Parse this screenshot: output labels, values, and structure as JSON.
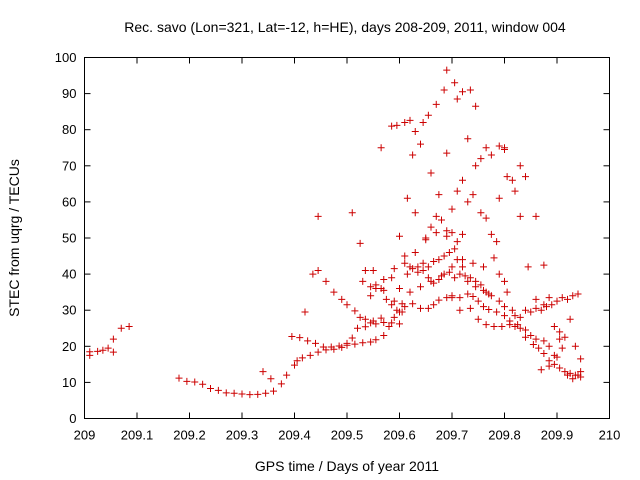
{
  "chart_data": {
    "type": "scatter",
    "title": "Rec. savo (Lon=321, Lat=-12, h=HE), days 208-209, 2011, window 004",
    "xlabel": "GPS time / Days of year 2011",
    "ylabel": "STEC from uqrg / TECUs",
    "xlim": [
      209,
      210
    ],
    "ylim": [
      0,
      100
    ],
    "xticks": [
      "209",
      "209.1",
      "209.2",
      "209.3",
      "209.4",
      "209.5",
      "209.6",
      "209.7",
      "209.8",
      "209.9",
      "210"
    ],
    "yticks": [
      "0",
      "10",
      "20",
      "30",
      "40",
      "50",
      "60",
      "70",
      "80",
      "90",
      "100"
    ],
    "grid": false,
    "marker": "+",
    "color": "#cc0000",
    "series": [
      {
        "values": [
          [
            209.01,
            18.5
          ],
          [
            209.01,
            17.5
          ],
          [
            209.025,
            18.6
          ],
          [
            209.035,
            18.9
          ],
          [
            209.045,
            19.5
          ],
          [
            209.055,
            18.4
          ],
          [
            209.055,
            22.0
          ],
          [
            209.07,
            25.0
          ],
          [
            209.085,
            25.5
          ],
          [
            209.18,
            11.2
          ],
          [
            209.195,
            10.3
          ],
          [
            209.21,
            10.1
          ],
          [
            209.225,
            9.5
          ],
          [
            209.24,
            8.3
          ],
          [
            209.255,
            7.8
          ],
          [
            209.27,
            7.1
          ],
          [
            209.285,
            7.0
          ],
          [
            209.3,
            6.8
          ],
          [
            209.315,
            6.6
          ],
          [
            209.33,
            6.7
          ],
          [
            209.345,
            7.0
          ],
          [
            209.36,
            7.6
          ],
          [
            209.375,
            9.6
          ],
          [
            209.385,
            12.0
          ],
          [
            209.34,
            13.0
          ],
          [
            209.355,
            11.0
          ],
          [
            209.4,
            14.8
          ],
          [
            209.405,
            16.0
          ],
          [
            209.415,
            16.8
          ],
          [
            209.43,
            17.5
          ],
          [
            209.445,
            18.4
          ],
          [
            209.46,
            19.0
          ],
          [
            209.475,
            19.2
          ],
          [
            209.49,
            19.7
          ],
          [
            209.5,
            20.3
          ],
          [
            209.515,
            20.6
          ],
          [
            209.53,
            21.0
          ],
          [
            209.545,
            21.2
          ],
          [
            209.555,
            21.8
          ],
          [
            209.57,
            23.0
          ],
          [
            209.58,
            25.5
          ],
          [
            209.59,
            28.0
          ],
          [
            209.6,
            29.5
          ],
          [
            209.61,
            31.0
          ],
          [
            209.625,
            31.8
          ],
          [
            209.64,
            30.5
          ],
          [
            209.655,
            30.5
          ],
          [
            209.665,
            31.5
          ],
          [
            209.675,
            32.8
          ],
          [
            209.69,
            33.5
          ],
          [
            209.7,
            34.0
          ],
          [
            209.715,
            33.5
          ],
          [
            209.73,
            34.5
          ],
          [
            209.74,
            33.8
          ],
          [
            209.75,
            32.5
          ],
          [
            209.76,
            31.0
          ],
          [
            209.77,
            30.2
          ],
          [
            209.785,
            29.5
          ],
          [
            209.8,
            28.5
          ],
          [
            209.81,
            27.0
          ],
          [
            209.825,
            26.0
          ],
          [
            209.84,
            24.5
          ],
          [
            209.85,
            23.0
          ],
          [
            209.86,
            22.0
          ],
          [
            209.875,
            21.5
          ],
          [
            209.885,
            20.0
          ],
          [
            209.895,
            17.5
          ],
          [
            209.395,
            22.7
          ],
          [
            209.41,
            22.4
          ],
          [
            209.425,
            21.5
          ],
          [
            209.44,
            20.8
          ],
          [
            209.455,
            19.8
          ],
          [
            209.47,
            19.8
          ],
          [
            209.485,
            20.1
          ],
          [
            209.5,
            20.8
          ],
          [
            209.51,
            22.3
          ],
          [
            209.52,
            25.0
          ],
          [
            209.535,
            25.4
          ],
          [
            209.545,
            26.5
          ],
          [
            209.555,
            26.2
          ],
          [
            209.57,
            26.6
          ],
          [
            209.585,
            26.5
          ],
          [
            209.6,
            26.2
          ],
          [
            209.42,
            29.5
          ],
          [
            209.435,
            40.0
          ],
          [
            209.445,
            41.0
          ],
          [
            209.46,
            38.0
          ],
          [
            209.475,
            35.0
          ],
          [
            209.49,
            33.0
          ],
          [
            209.5,
            31.5
          ],
          [
            209.515,
            29.8
          ],
          [
            209.525,
            28.0
          ],
          [
            209.535,
            27.5
          ],
          [
            209.55,
            27.0
          ],
          [
            209.565,
            27.8
          ],
          [
            209.445,
            56.0
          ],
          [
            209.51,
            57.0
          ],
          [
            209.525,
            48.5
          ],
          [
            209.535,
            41.0
          ],
          [
            209.545,
            36.5
          ],
          [
            209.555,
            37.0
          ],
          [
            209.565,
            36.0
          ],
          [
            209.575,
            33.0
          ],
          [
            209.585,
            31.5
          ],
          [
            209.595,
            30.0
          ],
          [
            209.605,
            29.5
          ],
          [
            209.53,
            38.0
          ],
          [
            209.545,
            34.0
          ],
          [
            209.555,
            36.0
          ],
          [
            209.57,
            35.5
          ],
          [
            209.585,
            39.0
          ],
          [
            209.6,
            36.0
          ],
          [
            209.615,
            40.0
          ],
          [
            209.625,
            41.5
          ],
          [
            209.635,
            42.0
          ],
          [
            209.645,
            43.0
          ],
          [
            209.655,
            42.0
          ],
          [
            209.665,
            43.5
          ],
          [
            209.675,
            44.0
          ],
          [
            209.685,
            45.0
          ],
          [
            209.695,
            46.0
          ],
          [
            209.705,
            47.0
          ],
          [
            209.565,
            75.0
          ],
          [
            209.585,
            81.0
          ],
          [
            209.595,
            81.2
          ],
          [
            209.61,
            82.0
          ],
          [
            209.62,
            82.6
          ],
          [
            209.63,
            79.5
          ],
          [
            209.645,
            82.0
          ],
          [
            209.655,
            84.0
          ],
          [
            209.67,
            87.0
          ],
          [
            209.685,
            91.0
          ],
          [
            209.69,
            96.5
          ],
          [
            209.705,
            93.0
          ],
          [
            209.71,
            88.5
          ],
          [
            209.72,
            90.5
          ],
          [
            209.735,
            91.0
          ],
          [
            209.745,
            86.5
          ],
          [
            209.625,
            73.0
          ],
          [
            209.64,
            76.0
          ],
          [
            209.66,
            68.0
          ],
          [
            209.675,
            62.0
          ],
          [
            209.69,
            73.5
          ],
          [
            209.7,
            58.0
          ],
          [
            209.71,
            63.0
          ],
          [
            209.72,
            66.0
          ],
          [
            209.73,
            77.5
          ],
          [
            209.745,
            70.0
          ],
          [
            209.755,
            72.0
          ],
          [
            209.765,
            75.0
          ],
          [
            209.775,
            73.0
          ],
          [
            209.79,
            75.5
          ],
          [
            209.8,
            74.5
          ],
          [
            209.615,
            61.0
          ],
          [
            209.63,
            57.0
          ],
          [
            209.65,
            50.0
          ],
          [
            209.66,
            53.0
          ],
          [
            209.67,
            56.0
          ],
          [
            209.68,
            55.0
          ],
          [
            209.69,
            52.0
          ],
          [
            209.7,
            51.5
          ],
          [
            209.71,
            49.0
          ],
          [
            209.72,
            51.0
          ],
          [
            209.73,
            60.0
          ],
          [
            209.74,
            62.0
          ],
          [
            209.755,
            57.0
          ],
          [
            209.765,
            55.5
          ],
          [
            209.775,
            51.0
          ],
          [
            209.785,
            49.0
          ],
          [
            209.79,
            61.0
          ],
          [
            209.6,
            50.5
          ],
          [
            209.61,
            45.0
          ],
          [
            209.62,
            42.0
          ],
          [
            209.635,
            40.5
          ],
          [
            209.645,
            41.0
          ],
          [
            209.655,
            39.0
          ],
          [
            209.665,
            37.5
          ],
          [
            209.675,
            38.5
          ],
          [
            209.685,
            40.0
          ],
          [
            209.695,
            40.5
          ],
          [
            209.705,
            39.0
          ],
          [
            209.715,
            40.0
          ],
          [
            209.725,
            39.5
          ],
          [
            209.735,
            39.0
          ],
          [
            209.745,
            38.0
          ],
          [
            209.755,
            37.0
          ],
          [
            209.765,
            35.0
          ],
          [
            209.775,
            34.0
          ],
          [
            209.79,
            32.5
          ],
          [
            209.8,
            31.0
          ],
          [
            209.59,
            32.5
          ],
          [
            209.605,
            31.8
          ],
          [
            209.62,
            35.0
          ],
          [
            209.64,
            36.5
          ],
          [
            209.66,
            38.0
          ],
          [
            209.68,
            39.5
          ],
          [
            209.7,
            42.0
          ],
          [
            209.72,
            44.0
          ],
          [
            209.74,
            43.0
          ],
          [
            209.76,
            42.0
          ],
          [
            209.78,
            44.5
          ],
          [
            209.79,
            40.0
          ],
          [
            209.8,
            38.0
          ],
          [
            209.55,
            41.0
          ],
          [
            209.57,
            38.5
          ],
          [
            209.59,
            41.5
          ],
          [
            209.61,
            43.0
          ],
          [
            209.63,
            46.0
          ],
          [
            209.65,
            49.5
          ],
          [
            209.67,
            51.5
          ],
          [
            209.69,
            50.5
          ],
          [
            209.71,
            44.0
          ],
          [
            209.72,
            42.0
          ],
          [
            209.73,
            38.0
          ],
          [
            209.745,
            36.5
          ],
          [
            209.76,
            35.5
          ],
          [
            209.77,
            34.5
          ],
          [
            209.7,
            33.5
          ],
          [
            209.715,
            30.0
          ],
          [
            209.735,
            30.5
          ],
          [
            209.75,
            27.5
          ],
          [
            209.765,
            26.0
          ],
          [
            209.78,
            25.5
          ],
          [
            209.795,
            25.5
          ],
          [
            209.81,
            26.0
          ],
          [
            209.82,
            25.5
          ],
          [
            209.83,
            25.0
          ],
          [
            209.84,
            22.5
          ],
          [
            209.855,
            20.5
          ],
          [
            209.865,
            19.5
          ],
          [
            209.875,
            18.0
          ],
          [
            209.885,
            16.0
          ],
          [
            209.895,
            15.0
          ],
          [
            209.905,
            14.0
          ],
          [
            209.915,
            13.0
          ],
          [
            209.925,
            12.5
          ],
          [
            209.935,
            12.0
          ],
          [
            209.945,
            11.5
          ],
          [
            209.8,
            75.0
          ],
          [
            209.805,
            67.0
          ],
          [
            209.815,
            66.0
          ],
          [
            209.82,
            63.0
          ],
          [
            209.83,
            70.0
          ],
          [
            209.84,
            67.0
          ],
          [
            209.83,
            56.0
          ],
          [
            209.845,
            42.0
          ],
          [
            209.86,
            56.0
          ],
          [
            209.875,
            42.5
          ],
          [
            209.805,
            35.0
          ],
          [
            209.815,
            30.0
          ],
          [
            209.82,
            28.5
          ],
          [
            209.83,
            28.0
          ],
          [
            209.84,
            30.0
          ],
          [
            209.85,
            29.5
          ],
          [
            209.86,
            30.5
          ],
          [
            209.87,
            30.0
          ],
          [
            209.88,
            31.0
          ],
          [
            209.89,
            31.5
          ],
          [
            209.9,
            32.5
          ],
          [
            209.91,
            33.5
          ],
          [
            209.92,
            33.0
          ],
          [
            209.93,
            34.0
          ],
          [
            209.94,
            34.5
          ],
          [
            209.86,
            33.0
          ],
          [
            209.875,
            31.5
          ],
          [
            209.885,
            33.5
          ],
          [
            209.895,
            25.5
          ],
          [
            209.905,
            24.0
          ],
          [
            209.915,
            22.5
          ],
          [
            209.925,
            27.5
          ],
          [
            209.935,
            20.0
          ],
          [
            209.945,
            16.5
          ],
          [
            209.905,
            22.0
          ],
          [
            209.92,
            12.0
          ],
          [
            209.93,
            11.0
          ],
          [
            209.94,
            12.0
          ],
          [
            209.945,
            13.0
          ],
          [
            209.91,
            19.5
          ],
          [
            209.9,
            17.0
          ],
          [
            209.885,
            14.5
          ],
          [
            209.87,
            13.5
          ]
        ]
      }
    ]
  }
}
